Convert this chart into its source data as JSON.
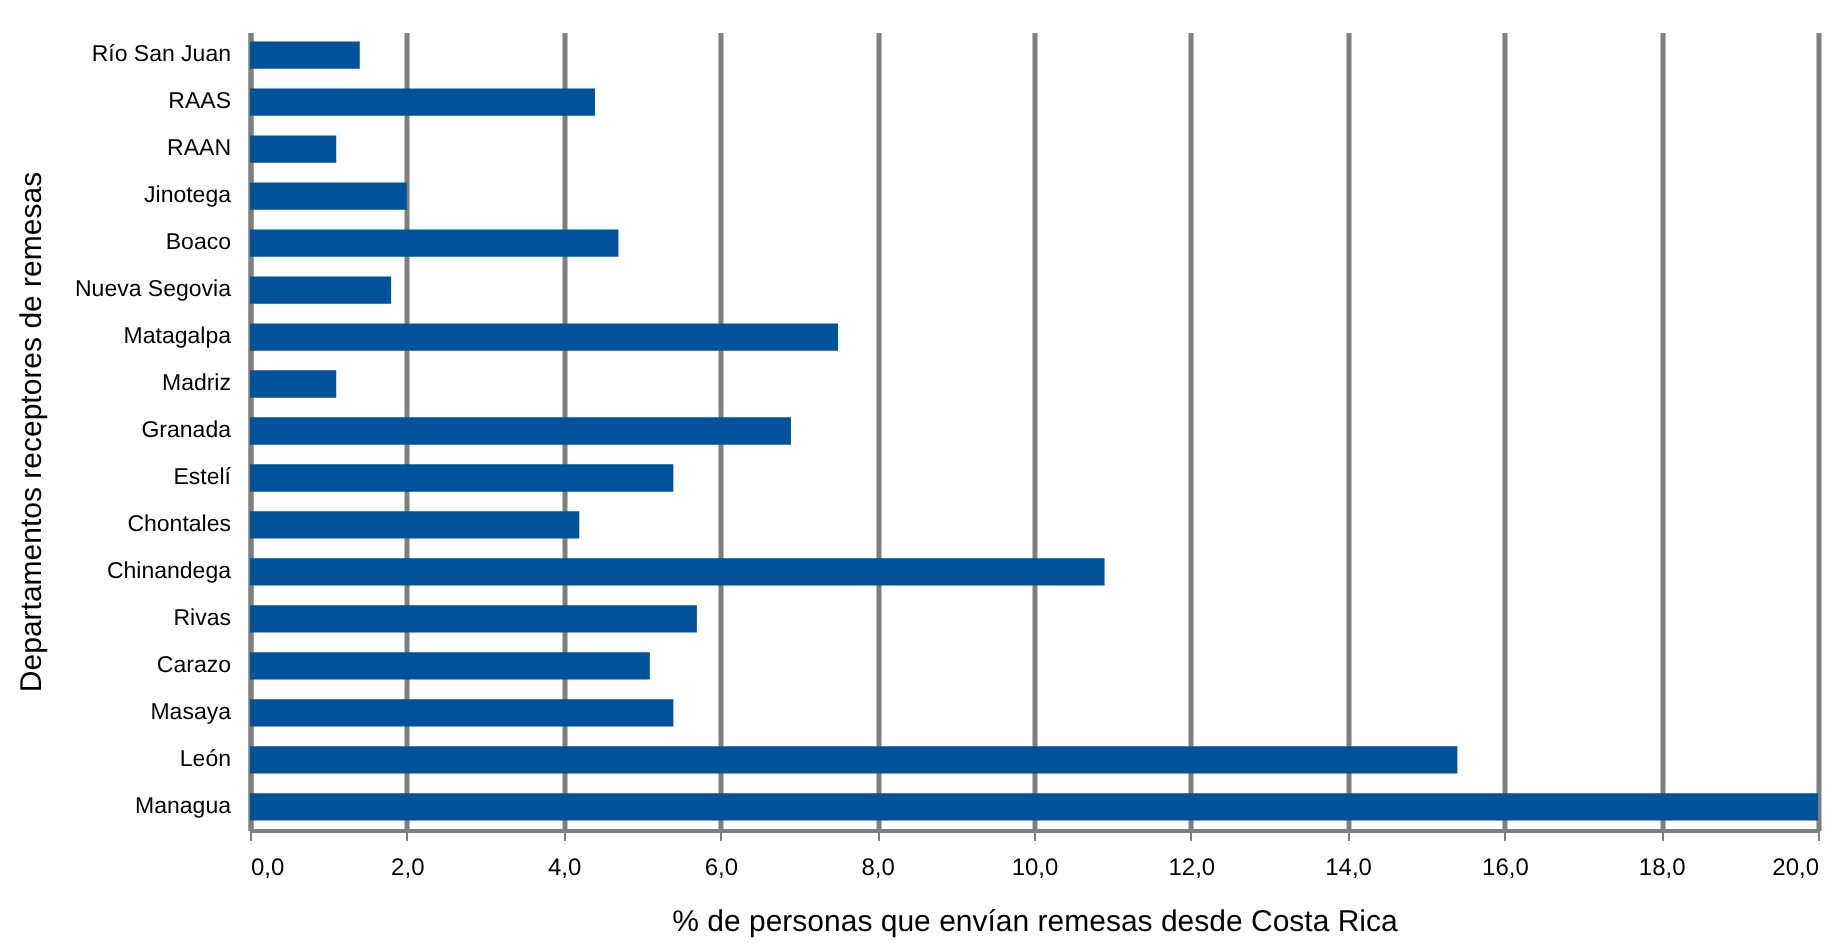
{
  "chart_data": {
    "type": "bar",
    "orientation": "horizontal",
    "xlabel": "% de personas que envían remesas desde Costa Rica",
    "ylabel": "Departamentos receptores de remesas",
    "categories": [
      "Río San Juan",
      "RAAS",
      "RAAN",
      "Jinotega",
      "Boaco",
      "Nueva Segovia",
      "Matagalpa",
      "Madriz",
      "Granada",
      "Estelí",
      "Chontales",
      "Chinandega",
      "Rivas",
      "Carazo",
      "Masaya",
      "León",
      "Managua"
    ],
    "values": [
      1.4,
      4.4,
      1.1,
      2.0,
      4.7,
      1.8,
      7.5,
      1.1,
      6.9,
      5.4,
      4.2,
      10.9,
      5.7,
      5.1,
      5.4,
      15.4,
      20.0
    ],
    "color": "#00529b",
    "xlim": [
      0,
      20
    ],
    "xticks": [
      {
        "value": 0,
        "label": "0,0"
      },
      {
        "value": 2,
        "label": "2,0"
      },
      {
        "value": 4,
        "label": "4,0"
      },
      {
        "value": 6,
        "label": "6,0"
      },
      {
        "value": 8,
        "label": "8,0"
      },
      {
        "value": 10,
        "label": "10,0"
      },
      {
        "value": 12,
        "label": "12,0"
      },
      {
        "value": 14,
        "label": "14,0"
      },
      {
        "value": 16,
        "label": "16,0"
      },
      {
        "value": 18,
        "label": "18,0"
      },
      {
        "value": 20,
        "label": "20,0"
      }
    ],
    "grid": "x"
  }
}
